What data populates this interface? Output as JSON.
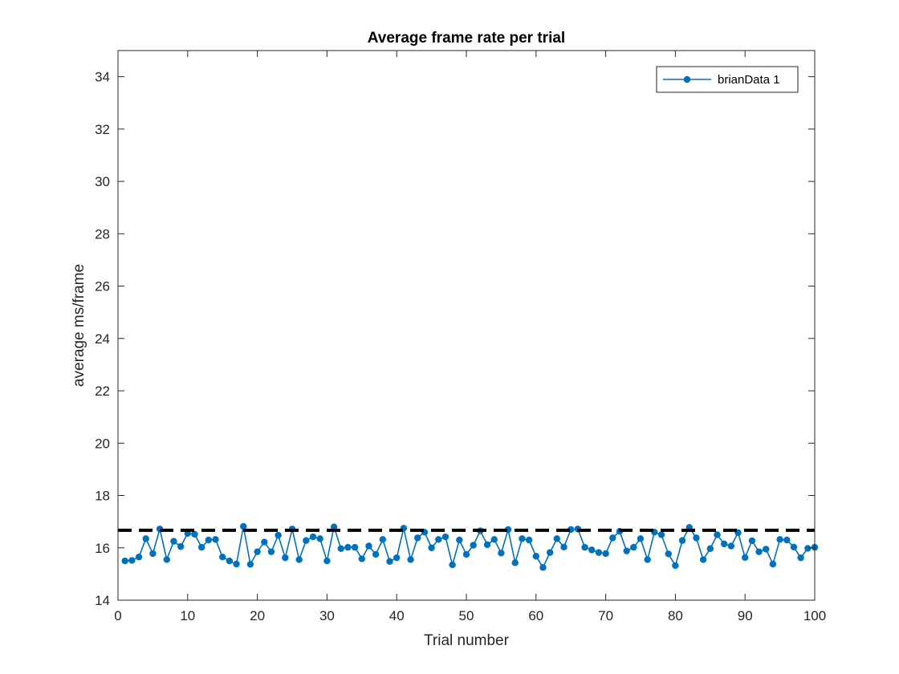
{
  "chart_data": {
    "type": "line",
    "title": "Average frame rate per trial",
    "xlabel": "Trial number",
    "ylabel": "average ms/frame",
    "xlim": [
      0,
      100
    ],
    "ylim": [
      14,
      35
    ],
    "xticks": [
      0,
      10,
      20,
      30,
      40,
      50,
      60,
      70,
      80,
      90,
      100
    ],
    "yticks": [
      14,
      16,
      18,
      20,
      22,
      24,
      26,
      28,
      30,
      32,
      34
    ],
    "grid": false,
    "legend": {
      "position": "top-right",
      "entries": [
        "brianData 1"
      ]
    },
    "series": [
      {
        "name": "brianData 1",
        "color": "#0072BD",
        "marker": "circle",
        "x": [
          1,
          2,
          3,
          4,
          5,
          6,
          7,
          8,
          9,
          10,
          11,
          12,
          13,
          14,
          15,
          16,
          17,
          18,
          19,
          20,
          21,
          22,
          23,
          24,
          25,
          26,
          27,
          28,
          29,
          30,
          31,
          32,
          33,
          34,
          35,
          36,
          37,
          38,
          39,
          40,
          41,
          42,
          43,
          44,
          45,
          46,
          47,
          48,
          49,
          50,
          51,
          52,
          53,
          54,
          55,
          56,
          57,
          58,
          59,
          60,
          61,
          62,
          63,
          64,
          65,
          66,
          67,
          68,
          69,
          70,
          71,
          72,
          73,
          74,
          75,
          76,
          77,
          78,
          79,
          80,
          81,
          82,
          83,
          84,
          85,
          86,
          87,
          88,
          89,
          90,
          91,
          92,
          93,
          94,
          95,
          96,
          97,
          98,
          99,
          100
        ],
        "values": [
          15.5,
          15.52,
          15.65,
          16.35,
          15.78,
          16.72,
          15.55,
          16.25,
          16.05,
          16.55,
          16.52,
          16.02,
          16.3,
          16.32,
          15.65,
          15.5,
          15.38,
          16.82,
          15.37,
          15.85,
          16.22,
          15.85,
          16.48,
          15.62,
          16.72,
          15.55,
          16.28,
          16.42,
          16.35,
          15.5,
          16.8,
          15.97,
          16.02,
          16.02,
          15.58,
          16.07,
          15.75,
          16.32,
          15.48,
          15.62,
          16.75,
          15.55,
          16.38,
          16.6,
          16.0,
          16.32,
          16.42,
          15.35,
          16.3,
          15.75,
          16.1,
          16.65,
          16.12,
          16.32,
          15.8,
          16.7,
          15.43,
          16.35,
          16.3,
          15.68,
          15.25,
          15.82,
          16.35,
          16.03,
          16.7,
          16.72,
          16.02,
          15.92,
          15.82,
          15.78,
          16.38,
          16.63,
          15.88,
          16.02,
          16.35,
          15.55,
          16.6,
          16.5,
          15.77,
          15.32,
          16.28,
          16.78,
          16.38,
          15.55,
          15.97,
          16.5,
          16.15,
          16.07,
          16.58,
          15.63,
          16.27,
          15.85,
          15.95,
          15.38,
          16.32,
          16.3,
          16.03,
          15.62,
          15.98,
          16.02
        ]
      },
      {
        "name": "",
        "color": "#000000",
        "style": "dashed",
        "x": [
          0,
          100
        ],
        "values": [
          16.67,
          16.67
        ]
      }
    ]
  }
}
